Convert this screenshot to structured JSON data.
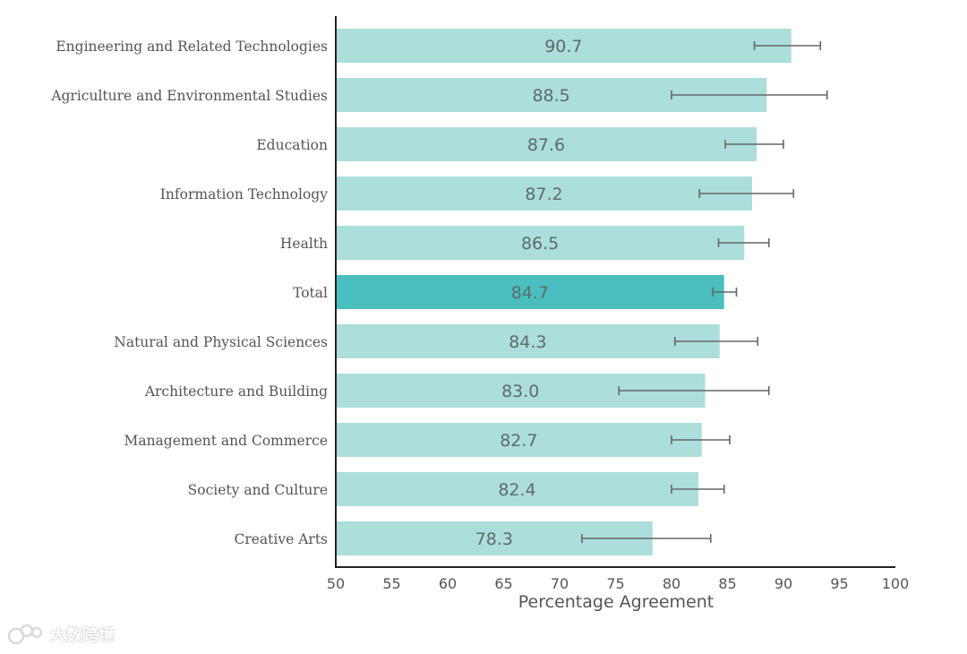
{
  "chart_data": {
    "type": "bar",
    "orientation": "horizontal",
    "title": "",
    "xlabel": "Percentage Agreement",
    "ylabel": "",
    "xlim": [
      50,
      100
    ],
    "x_ticks": [
      50,
      55,
      60,
      65,
      70,
      75,
      80,
      85,
      90,
      95,
      100
    ],
    "grid": false,
    "categories": [
      "Engineering and Related Technologies",
      "Agriculture and Environmental Studies",
      "Education",
      "Information Technology",
      "Health",
      "Total",
      "Natural and Physical Sciences",
      "Architecture and Building",
      "Management and Commerce",
      "Society and Culture",
      "Creative Arts"
    ],
    "values": [
      90.7,
      88.5,
      87.6,
      87.2,
      86.5,
      84.7,
      84.3,
      83.0,
      82.7,
      82.4,
      78.3
    ],
    "value_labels": [
      "90.7",
      "88.5",
      "87.6",
      "87.2",
      "86.5",
      "84.7",
      "84.3",
      "83.0",
      "82.7",
      "82.4",
      "78.3"
    ],
    "error_low": [
      87.4,
      80.0,
      84.8,
      82.5,
      84.2,
      83.7,
      80.3,
      75.3,
      80.0,
      80.0,
      72.0
    ],
    "error_high": [
      93.3,
      93.9,
      90.0,
      90.9,
      88.7,
      85.8,
      87.7,
      88.7,
      85.2,
      84.7,
      83.5
    ],
    "highlight_category": "Total",
    "colors": {
      "bar": "#acdedb",
      "highlight": "#4bbfbf",
      "error_bar": "#666666",
      "axis": "#222222"
    }
  },
  "watermark": {
    "text": "大数跨境"
  }
}
